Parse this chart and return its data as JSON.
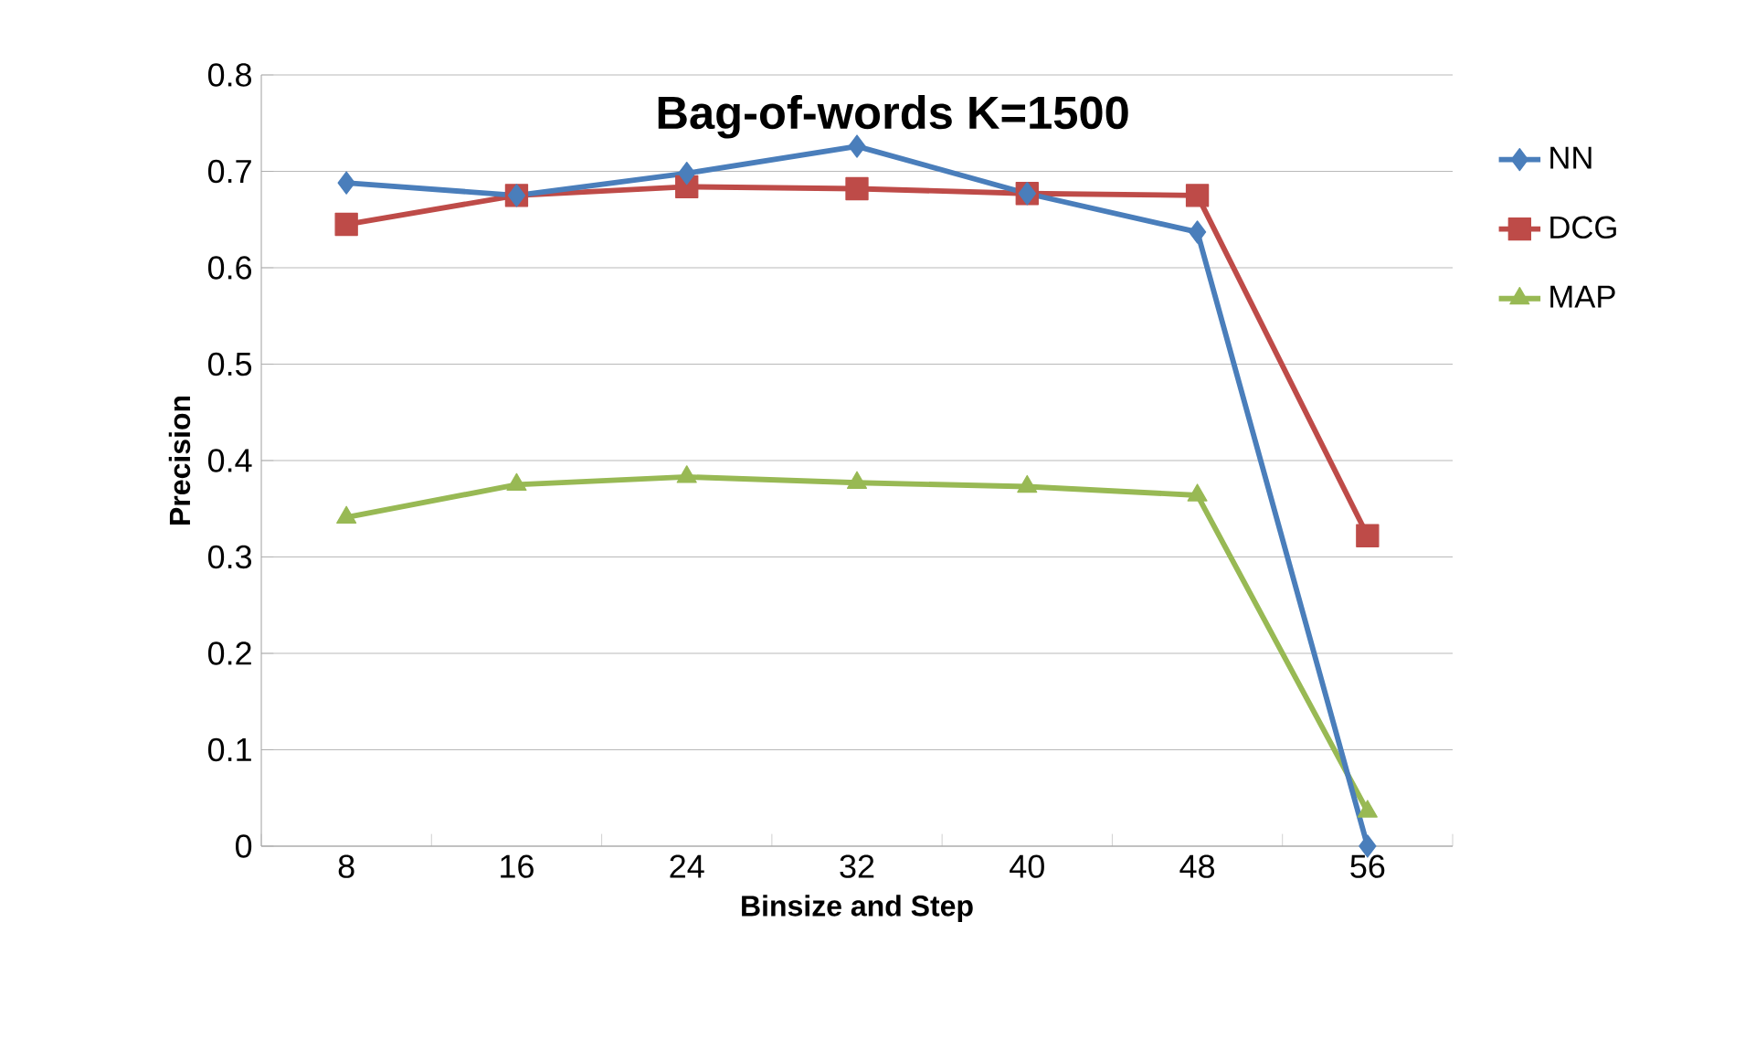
{
  "chart_data": {
    "type": "line",
    "title": "Bag-of-words K=1500",
    "xlabel": "Binsize and Step",
    "ylabel": "Precision",
    "categories": [
      "8",
      "16",
      "24",
      "32",
      "40",
      "48",
      "56"
    ],
    "series": [
      {
        "name": "NN",
        "color": "#4a7ebb",
        "marker": "diamond",
        "values": [
          0.688,
          0.675,
          0.698,
          0.726,
          0.677,
          0.637,
          0.0
        ]
      },
      {
        "name": "DCG",
        "color": "#be4b48",
        "marker": "square",
        "values": [
          0.645,
          0.675,
          0.684,
          0.682,
          0.677,
          0.675,
          0.322
        ]
      },
      {
        "name": "MAP",
        "color": "#98b954",
        "marker": "triangle",
        "values": [
          0.341,
          0.375,
          0.383,
          0.377,
          0.373,
          0.364,
          0.036
        ]
      }
    ],
    "ylim": [
      0,
      0.8
    ],
    "yticks": [
      0,
      0.1,
      0.2,
      0.3,
      0.4,
      0.5,
      0.6,
      0.7,
      0.8
    ],
    "grid": "y",
    "legend": "right"
  }
}
